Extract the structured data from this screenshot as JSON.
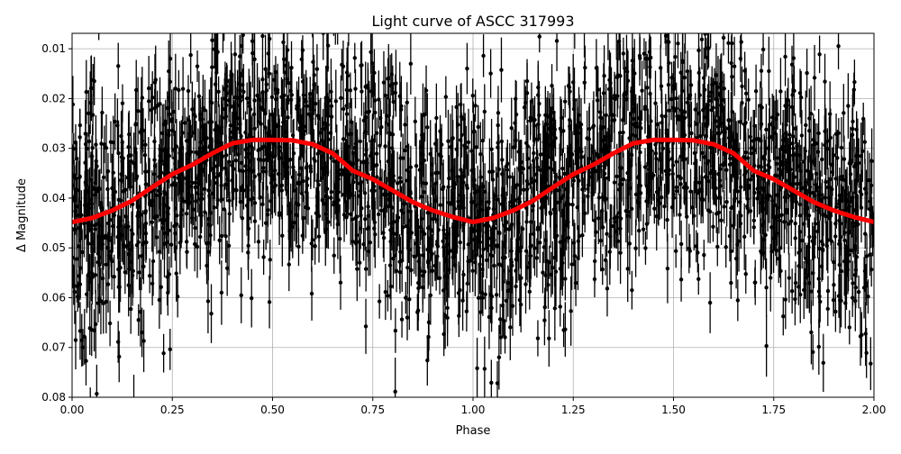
{
  "chart_data": {
    "type": "scatter",
    "title": "Light curve of ASCC 317993",
    "xlabel": "Phase",
    "ylabel": "Δ Magnitude",
    "xlim": [
      0,
      2
    ],
    "ylim": [
      0.0069,
      0.08
    ],
    "y_inverted": true,
    "grid": true,
    "xticks": [
      "0.00",
      "0.25",
      "0.50",
      "0.75",
      "1.00",
      "1.25",
      "1.50",
      "1.75",
      "2.00"
    ],
    "yticks": [
      "0.01",
      "0.02",
      "0.03",
      "0.04",
      "0.05",
      "0.06",
      "0.07",
      "0.08"
    ],
    "colors": {
      "points": "#000000",
      "binned_curve": "#ff0000",
      "grid": "#b0b0b0"
    },
    "binned_curve": {
      "x": [
        0,
        0.05,
        0.1,
        0.15,
        0.2,
        0.25,
        0.3,
        0.35,
        0.4,
        0.45,
        0.5,
        0.55,
        0.6,
        0.65,
        0.7,
        0.75,
        0.8,
        0.85,
        0.9,
        0.95,
        1.0,
        1.05,
        1.1,
        1.15,
        1.2,
        1.25,
        1.3,
        1.35,
        1.4,
        1.45,
        1.5,
        1.55,
        1.6,
        1.65,
        1.7,
        1.75,
        1.8,
        1.85,
        1.9,
        1.95,
        2.0
      ],
      "y": [
        0.0448,
        0.044,
        0.0425,
        0.0405,
        0.0378,
        0.0352,
        0.0333,
        0.031,
        0.029,
        0.0283,
        0.0283,
        0.0284,
        0.0292,
        0.031,
        0.0345,
        0.0362,
        0.0385,
        0.0408,
        0.0425,
        0.0438,
        0.0448,
        0.044,
        0.0425,
        0.0405,
        0.0378,
        0.0352,
        0.0333,
        0.031,
        0.029,
        0.0283,
        0.0283,
        0.0284,
        0.0292,
        0.031,
        0.0345,
        0.0362,
        0.0385,
        0.0408,
        0.0425,
        0.0438,
        0.0448
      ]
    },
    "points_scatter_sigma": 0.012
  }
}
